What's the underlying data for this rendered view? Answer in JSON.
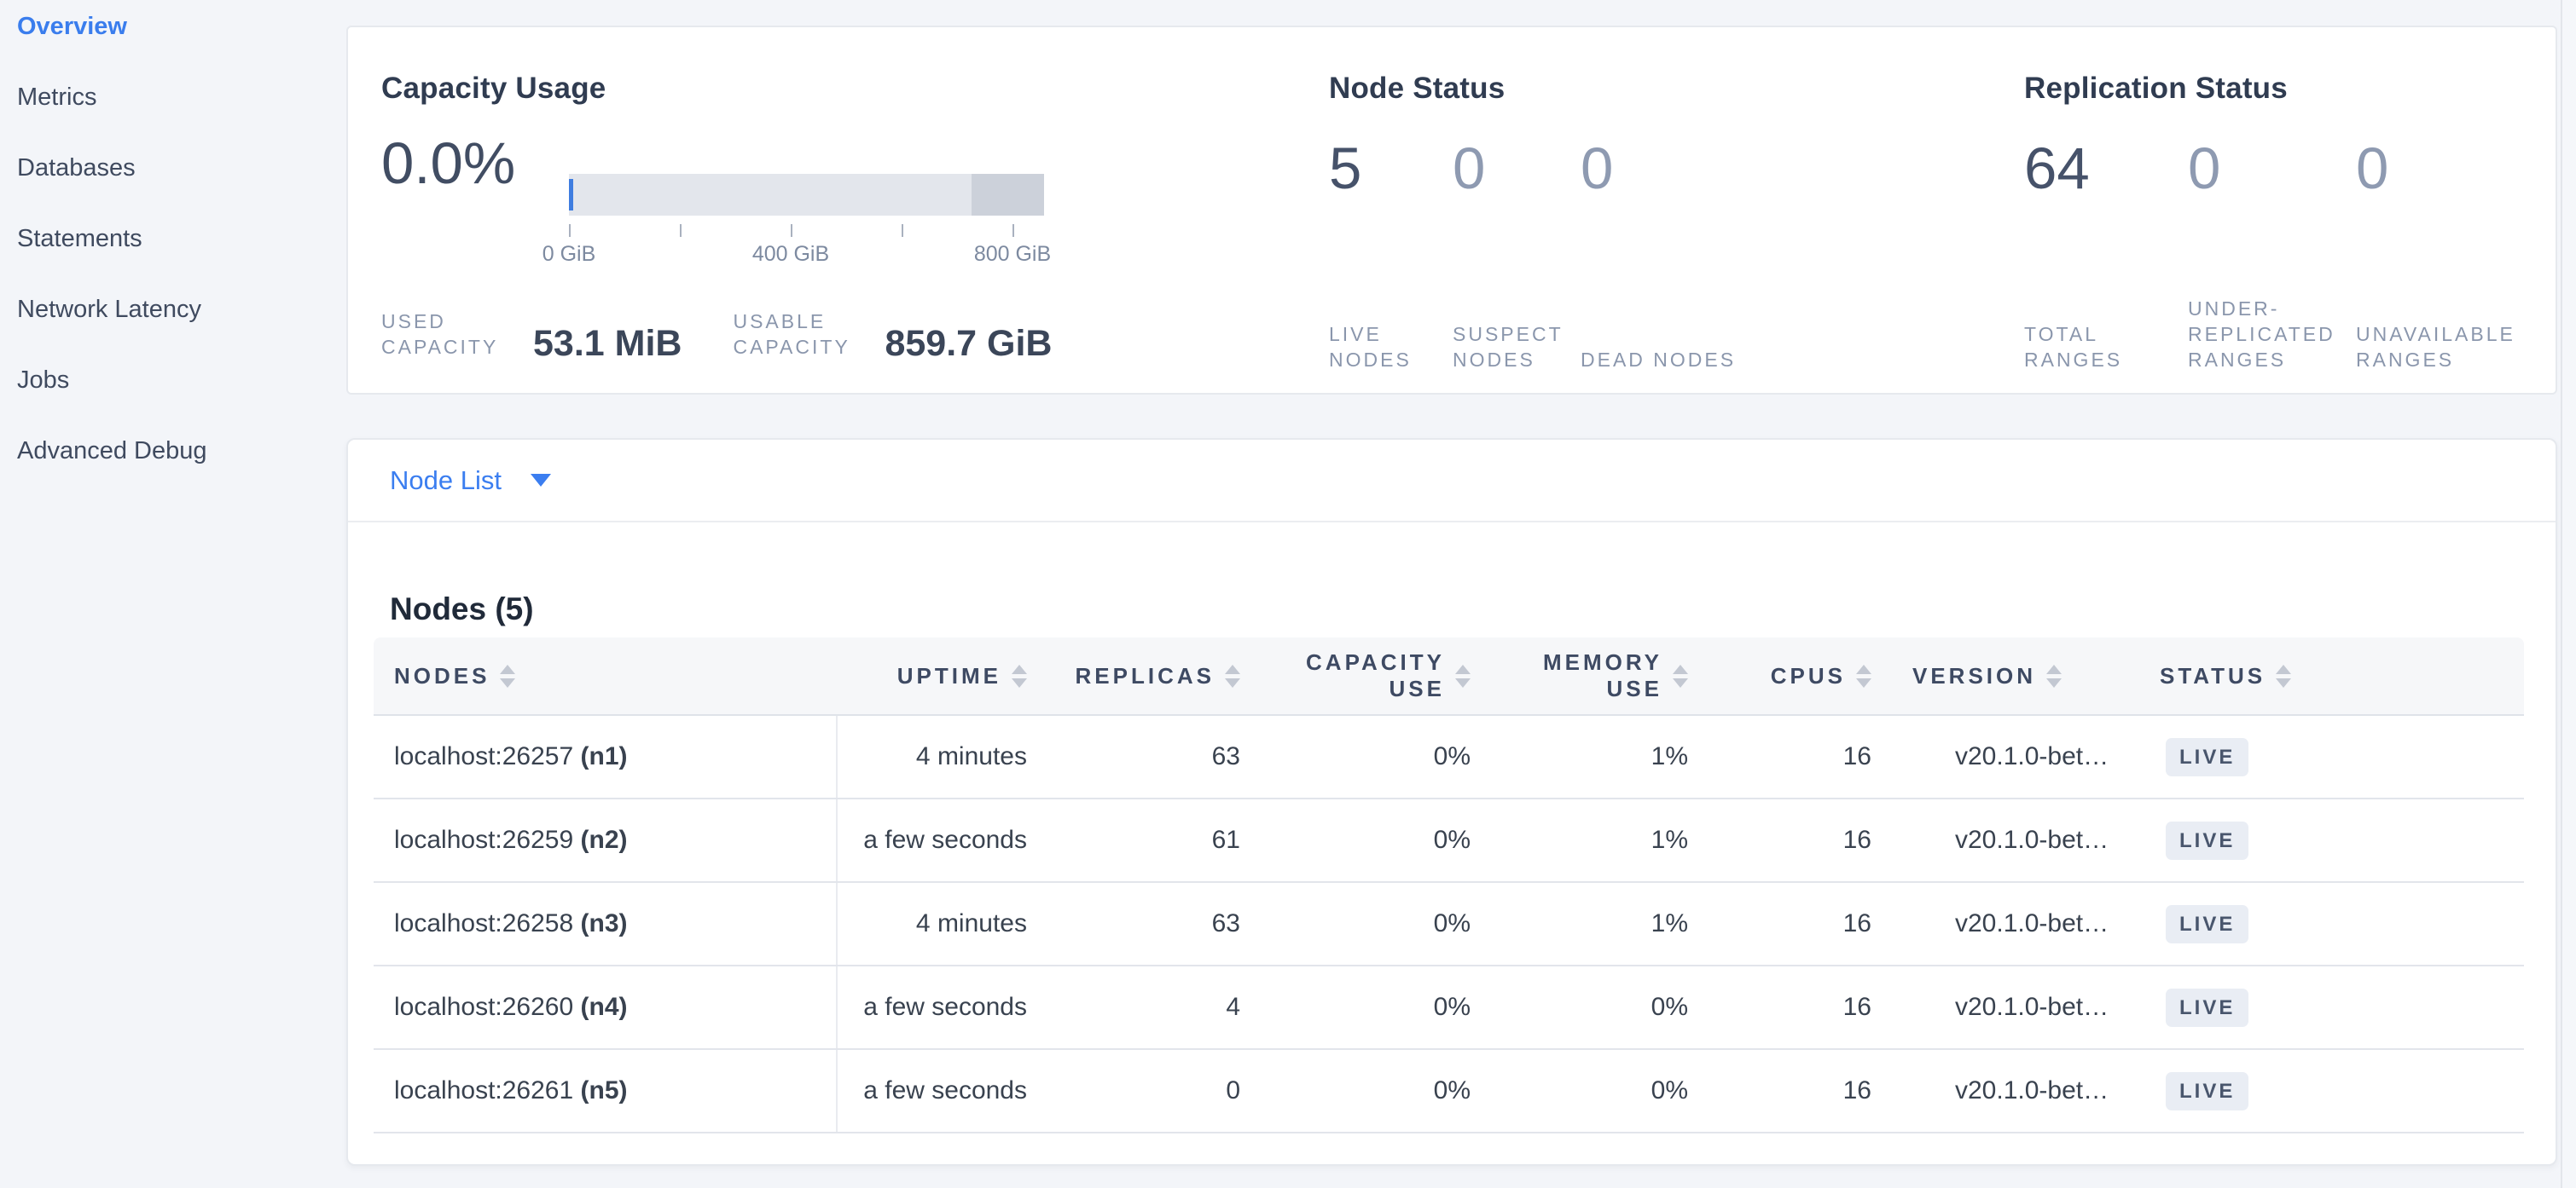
{
  "sidebar": {
    "items": [
      {
        "label": "Overview",
        "active": true
      },
      {
        "label": "Metrics",
        "active": false
      },
      {
        "label": "Databases",
        "active": false
      },
      {
        "label": "Statements",
        "active": false
      },
      {
        "label": "Network Latency",
        "active": false
      },
      {
        "label": "Jobs",
        "active": false
      },
      {
        "label": "Advanced Debug",
        "active": false
      }
    ]
  },
  "summary": {
    "capacity": {
      "title": "Capacity Usage",
      "percent": "0.0%",
      "axis_ticks": [
        {
          "label": "0 GiB"
        },
        {
          "label": "400 GiB"
        },
        {
          "label": "800 GiB"
        }
      ],
      "stats": [
        {
          "label": "USED CAPACITY",
          "value": "53.1 MiB"
        },
        {
          "label": "USABLE CAPACITY",
          "value": "859.7 GiB"
        }
      ]
    },
    "node_status": {
      "title": "Node Status",
      "stats": [
        {
          "value": "5",
          "label": "LIVE NODES"
        },
        {
          "value": "0",
          "label": "SUSPECT NODES"
        },
        {
          "value": "0",
          "label": "DEAD NODES"
        }
      ]
    },
    "replication": {
      "title": "Replication Status",
      "stats": [
        {
          "value": "64",
          "label": "TOTAL RANGES"
        },
        {
          "value": "0",
          "label": "UNDER-REPLICATED RANGES"
        },
        {
          "value": "0",
          "label": "UNAVAILABLE RANGES"
        }
      ]
    }
  },
  "node_list": {
    "selector_label": "Node List",
    "heading": "Nodes (5)",
    "table": {
      "columns": [
        "NODES",
        "UPTIME",
        "REPLICAS",
        "CAPACITY USE",
        "MEMORY USE",
        "CPUS",
        "VERSION",
        "STATUS"
      ],
      "rows": [
        {
          "address": "localhost:26257",
          "name": "(n1)",
          "uptime": "4 minutes",
          "replicas": "63",
          "capacity_use": "0%",
          "memory_use": "1%",
          "cpus": "16",
          "version": "v20.1.0-bet…",
          "status": "LIVE"
        },
        {
          "address": "localhost:26259",
          "name": "(n2)",
          "uptime": "a few seconds",
          "replicas": "61",
          "capacity_use": "0%",
          "memory_use": "1%",
          "cpus": "16",
          "version": "v20.1.0-bet…",
          "status": "LIVE"
        },
        {
          "address": "localhost:26258",
          "name": "(n3)",
          "uptime": "4 minutes",
          "replicas": "63",
          "capacity_use": "0%",
          "memory_use": "1%",
          "cpus": "16",
          "version": "v20.1.0-bet…",
          "status": "LIVE"
        },
        {
          "address": "localhost:26260",
          "name": "(n4)",
          "uptime": "a few seconds",
          "replicas": "4",
          "capacity_use": "0%",
          "memory_use": "0%",
          "cpus": "16",
          "version": "v20.1.0-bet…",
          "status": "LIVE"
        },
        {
          "address": "localhost:26261",
          "name": "(n5)",
          "uptime": "a few seconds",
          "replicas": "0",
          "capacity_use": "0%",
          "memory_use": "0%",
          "cpus": "16",
          "version": "v20.1.0-bet…",
          "status": "LIVE"
        }
      ]
    }
  },
  "colors": {
    "accent_blue": "#3a7ded",
    "gauge_light": "#e3e6ec",
    "gauge_dark": "#ccd1da",
    "gauge_used": "#3f7de0",
    "badge_bg": "#e9edf4"
  }
}
